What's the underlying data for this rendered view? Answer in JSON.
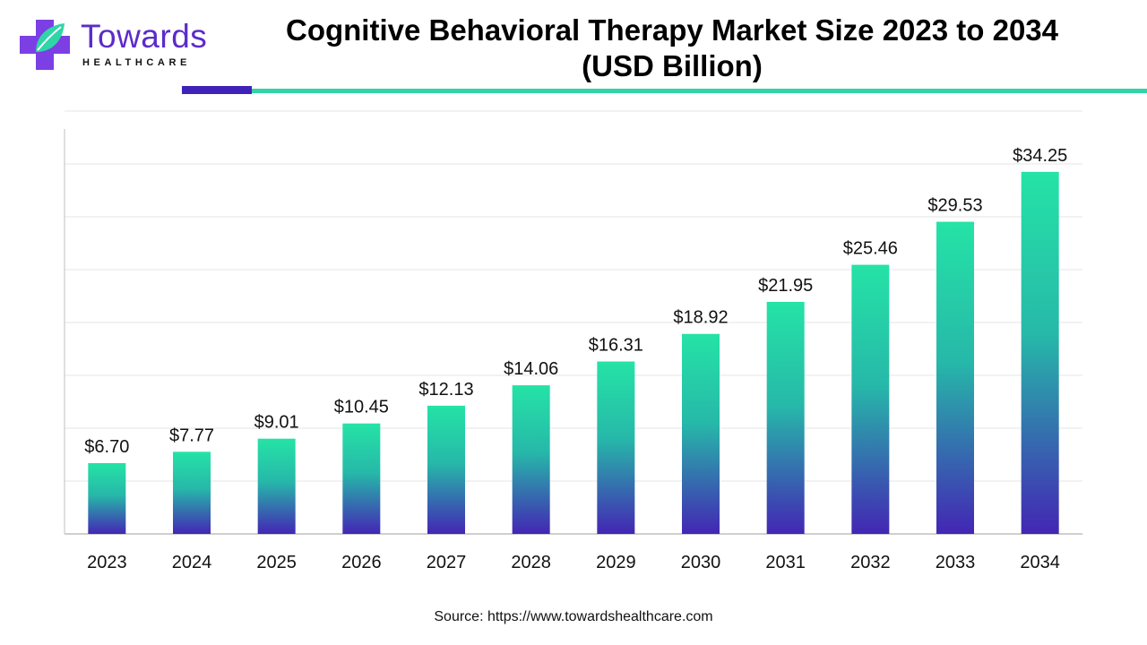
{
  "logo": {
    "name": "Towards",
    "subtitle": "HEALTHCARE",
    "colors": {
      "primary": "#5b2cc9",
      "accent": "#2fd5a7"
    }
  },
  "header": {
    "title_line1": "Cognitive Behavioral Therapy Market Size 2023 to 2034",
    "title_line2": "(USD Billion)"
  },
  "footer": {
    "source": "Source: https://www.towardshealthcare.com"
  },
  "chart_data": {
    "type": "bar",
    "categories": [
      "2023",
      "2024",
      "2025",
      "2026",
      "2027",
      "2028",
      "2029",
      "2030",
      "2031",
      "2032",
      "2033",
      "2034"
    ],
    "values": [
      6.7,
      7.77,
      9.01,
      10.45,
      12.13,
      14.06,
      16.31,
      18.92,
      21.95,
      25.46,
      29.53,
      34.25
    ],
    "value_labels": [
      "$6.70",
      "$7.77",
      "$9.01",
      "$10.45",
      "$12.13",
      "$14.06",
      "$16.31",
      "$18.92",
      "$21.95",
      "$25.46",
      "$29.53",
      "$34.25"
    ],
    "ylim": [
      0,
      40
    ],
    "grid": true,
    "legend": false,
    "colors": {
      "bar_top": "#25e3a6",
      "bar_bottom": "#4326b4",
      "grid": "#e6e6e6",
      "axis": "#bfbfbf"
    }
  }
}
